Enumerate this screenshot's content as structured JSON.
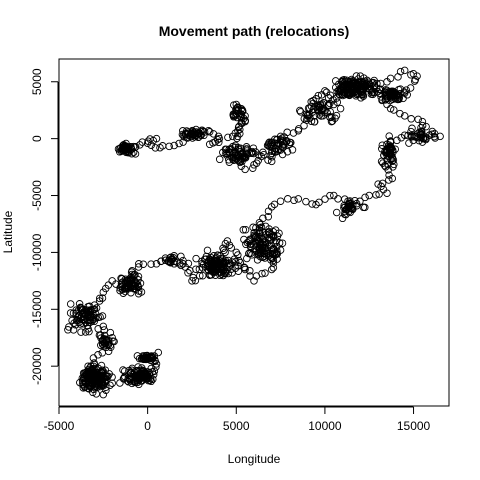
{
  "chart_data": {
    "type": "scatter",
    "title": "Movement path (relocations)",
    "xlabel": "Longitude",
    "ylabel": "Latitude",
    "xlim": [
      -5000,
      17000
    ],
    "ylim": [
      -23500,
      7000
    ],
    "x_ticks": [
      -5000,
      0,
      5000,
      10000,
      15000
    ],
    "x_tick_labels": [
      "-5000",
      "0",
      "5000",
      "10000",
      "15000"
    ],
    "y_ticks": [
      5000,
      0,
      -5000,
      -10000,
      -15000,
      -20000
    ],
    "y_tick_labels": [
      "5000",
      "0",
      "-5000",
      "-10000",
      "-15000",
      "-20000"
    ],
    "grid": false,
    "marker": "open-circle",
    "path_vertices": [
      [
        -1500,
        -800
      ],
      [
        -1200,
        -1100
      ],
      [
        -800,
        -700
      ],
      [
        -300,
        -300
      ],
      [
        500,
        0
      ],
      [
        0,
        -400
      ],
      [
        700,
        -800
      ],
      [
        1500,
        -600
      ],
      [
        2000,
        -300
      ],
      [
        2500,
        500
      ],
      [
        3000,
        300
      ],
      [
        3500,
        600
      ],
      [
        4000,
        200
      ],
      [
        3500,
        -500
      ],
      [
        4800,
        200
      ],
      [
        5500,
        1500
      ],
      [
        5000,
        3000
      ],
      [
        5500,
        2000
      ],
      [
        5200,
        800
      ],
      [
        4800,
        -700
      ],
      [
        4500,
        -1300
      ],
      [
        5000,
        -1800
      ],
      [
        5500,
        -2700
      ],
      [
        6000,
        -2300
      ],
      [
        6500,
        -1200
      ],
      [
        7000,
        -2000
      ],
      [
        7500,
        -1000
      ],
      [
        8000,
        -500
      ],
      [
        7500,
        200
      ],
      [
        8500,
        700
      ],
      [
        9000,
        1800
      ],
      [
        9500,
        3500
      ],
      [
        10000,
        4200
      ],
      [
        10500,
        3000
      ],
      [
        11000,
        4500
      ],
      [
        11500,
        5200
      ],
      [
        12000,
        5500
      ],
      [
        12500,
        4800
      ],
      [
        13500,
        5000
      ],
      [
        14500,
        6000
      ],
      [
        15200,
        5500
      ],
      [
        14500,
        4000
      ],
      [
        13500,
        3000
      ],
      [
        14500,
        2000
      ],
      [
        15500,
        1500
      ],
      [
        16500,
        200
      ],
      [
        15500,
        -300
      ],
      [
        14500,
        300
      ],
      [
        13500,
        -500
      ],
      [
        13200,
        -2000
      ],
      [
        13800,
        -3500
      ],
      [
        13000,
        -4000
      ],
      [
        13500,
        -4800
      ],
      [
        12500,
        -5000
      ],
      [
        11500,
        -6000
      ],
      [
        11000,
        -7000
      ],
      [
        11300,
        -5500
      ],
      [
        10500,
        -5000
      ],
      [
        9500,
        -5800
      ],
      [
        8500,
        -5300
      ],
      [
        7500,
        -5500
      ],
      [
        7000,
        -6000
      ],
      [
        6500,
        -7000
      ],
      [
        6000,
        -8500
      ],
      [
        6500,
        -9500
      ],
      [
        7000,
        -10500
      ],
      [
        7500,
        -9800
      ],
      [
        7000,
        -11500
      ],
      [
        6000,
        -12500
      ],
      [
        5500,
        -11500
      ],
      [
        5000,
        -10000
      ],
      [
        4500,
        -9000
      ],
      [
        4000,
        -11000
      ],
      [
        3500,
        -12000
      ],
      [
        2500,
        -12500
      ],
      [
        2000,
        -11000
      ],
      [
        1500,
        -11000
      ],
      [
        1000,
        -10500
      ],
      [
        500,
        -11000
      ],
      [
        -500,
        -11000
      ],
      [
        -1000,
        -12500
      ],
      [
        -1500,
        -13000
      ],
      [
        -2000,
        -12500
      ],
      [
        -2500,
        -13500
      ],
      [
        -3000,
        -15000
      ],
      [
        -4000,
        -16000
      ],
      [
        -4500,
        -16800
      ],
      [
        -3500,
        -17000
      ],
      [
        -2500,
        -16500
      ],
      [
        -2000,
        -17500
      ],
      [
        -2200,
        -18700
      ],
      [
        -2800,
        -19000
      ],
      [
        -3200,
        -20000
      ],
      [
        -3600,
        -21000
      ],
      [
        -3300,
        -22000
      ],
      [
        -2500,
        -22500
      ],
      [
        -2000,
        -21500
      ],
      [
        -1000,
        -21200
      ],
      [
        -500,
        -21600
      ],
      [
        0,
        -20500
      ],
      [
        500,
        -19800
      ],
      [
        0,
        -19200
      ],
      [
        600,
        -18800
      ]
    ],
    "clusters": [
      {
        "x": -1200,
        "y": -900,
        "sx": 450,
        "sy": 400,
        "n": 45
      },
      {
        "x": 2500,
        "y": 400,
        "sx": 700,
        "sy": 350,
        "n": 40
      },
      {
        "x": 5000,
        "y": 2200,
        "sx": 350,
        "sy": 700,
        "n": 20
      },
      {
        "x": 5200,
        "y": -1400,
        "sx": 900,
        "sy": 650,
        "n": 60
      },
      {
        "x": 7300,
        "y": -600,
        "sx": 700,
        "sy": 700,
        "n": 40
      },
      {
        "x": 9800,
        "y": 2400,
        "sx": 900,
        "sy": 1000,
        "n": 50
      },
      {
        "x": 11800,
        "y": 4400,
        "sx": 1100,
        "sy": 800,
        "n": 150
      },
      {
        "x": 13800,
        "y": 3900,
        "sx": 600,
        "sy": 500,
        "n": 60
      },
      {
        "x": 13600,
        "y": -1200,
        "sx": 350,
        "sy": 900,
        "n": 45
      },
      {
        "x": 15400,
        "y": 300,
        "sx": 700,
        "sy": 500,
        "n": 30
      },
      {
        "x": 11500,
        "y": -6000,
        "sx": 700,
        "sy": 600,
        "n": 25
      },
      {
        "x": 6600,
        "y": -9200,
        "sx": 900,
        "sy": 1300,
        "n": 110
      },
      {
        "x": 3800,
        "y": -11200,
        "sx": 1100,
        "sy": 900,
        "n": 120
      },
      {
        "x": 1500,
        "y": -10700,
        "sx": 500,
        "sy": 400,
        "n": 18
      },
      {
        "x": -1000,
        "y": -12700,
        "sx": 600,
        "sy": 800,
        "n": 60
      },
      {
        "x": -3500,
        "y": -15500,
        "sx": 800,
        "sy": 900,
        "n": 70
      },
      {
        "x": -2400,
        "y": -17800,
        "sx": 300,
        "sy": 600,
        "n": 25
      },
      {
        "x": -3000,
        "y": -21000,
        "sx": 700,
        "sy": 900,
        "n": 180
      },
      {
        "x": -500,
        "y": -20800,
        "sx": 800,
        "sy": 600,
        "n": 90
      },
      {
        "x": 0,
        "y": -19300,
        "sx": 500,
        "sy": 300,
        "n": 35
      }
    ]
  }
}
